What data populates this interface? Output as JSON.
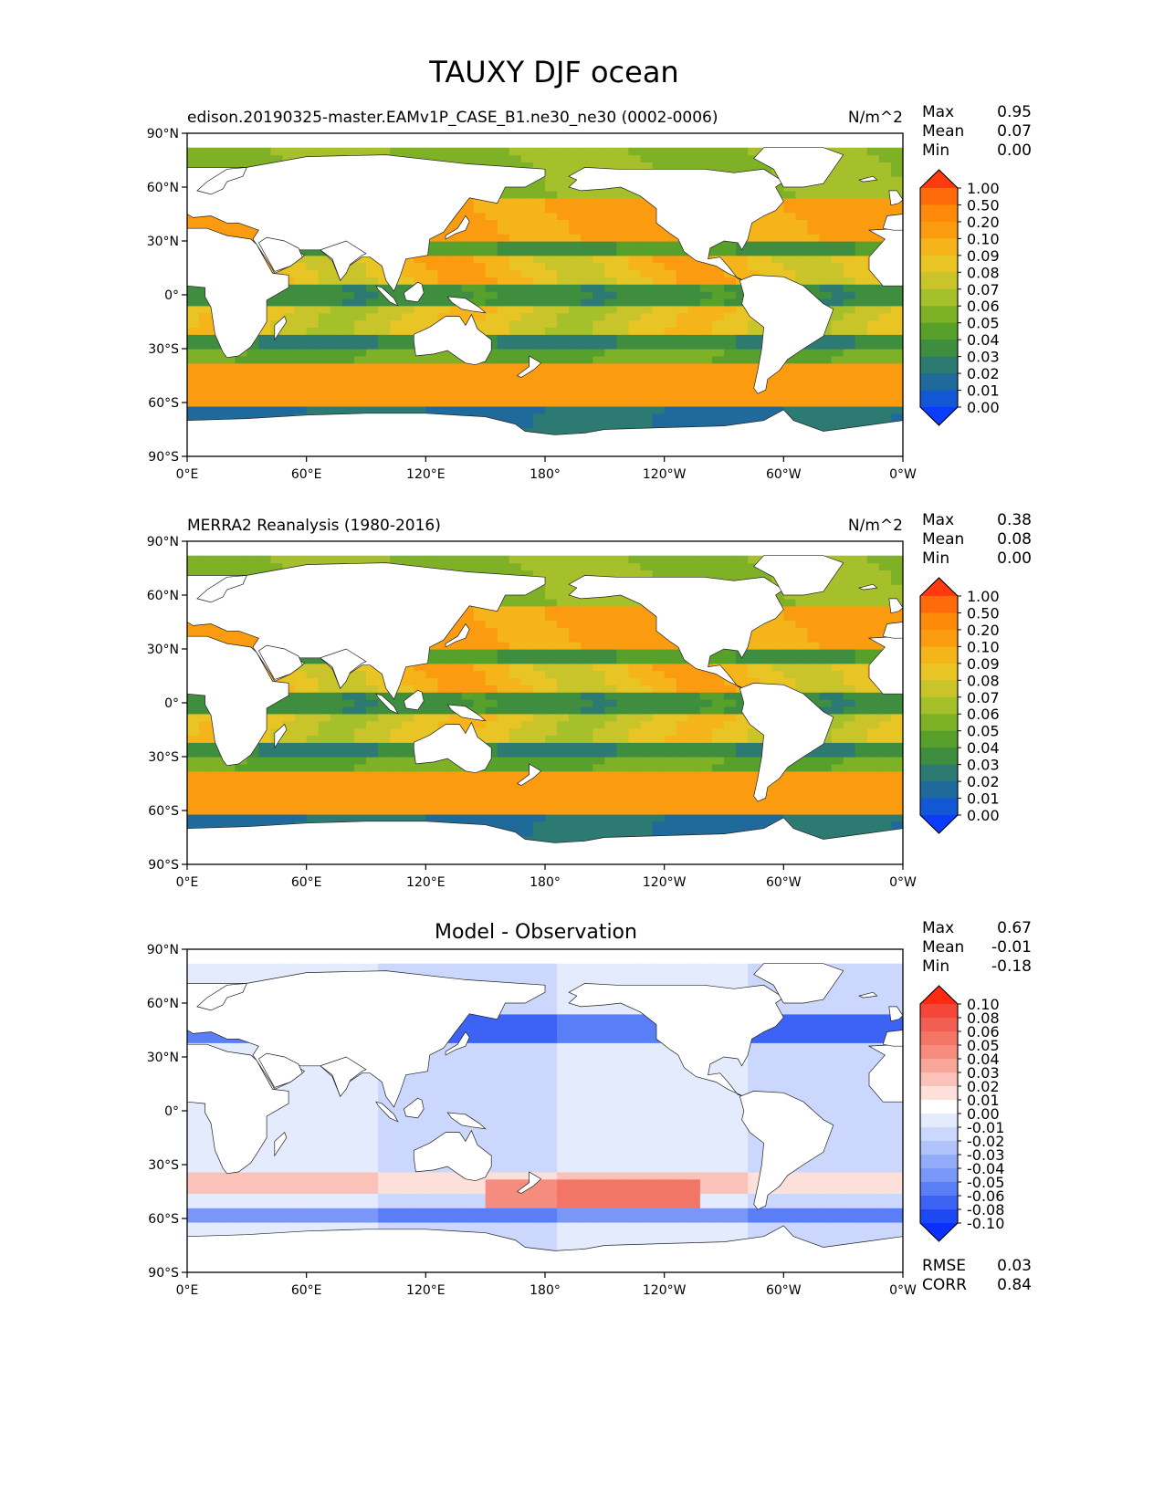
{
  "figure_title": "TAUXY DJF ocean",
  "chart_data": [
    {
      "type": "heatmap",
      "panel": "test",
      "title_left": "edison.20190325-master.EAMv1P_CASE_B1.ne30_ne30 (0002-0006)",
      "title_center": "",
      "units": "N/m^2",
      "xticks": [
        "0°E",
        "60°E",
        "120°E",
        "180°",
        "120°W",
        "60°W",
        "0°W"
      ],
      "yticks": [
        "90°N",
        "60°N",
        "30°N",
        "0°",
        "30°S",
        "60°S",
        "90°S"
      ],
      "xlim": [
        0,
        360
      ],
      "ylim": [
        -90,
        90
      ],
      "stats": [
        {
          "label": "Max",
          "value": "0.95"
        },
        {
          "label": "Mean",
          "value": "0.07"
        },
        {
          "label": "Min",
          "value": "0.00"
        }
      ],
      "colorbar": {
        "labels": [
          "1.00",
          "0.50",
          "0.20",
          "0.10",
          "0.09",
          "0.08",
          "0.07",
          "0.06",
          "0.05",
          "0.04",
          "0.03",
          "0.02",
          "0.01",
          "0.00"
        ],
        "colors": [
          "#ff3a0f",
          "#ff6a0a",
          "#ff8a0a",
          "#fb9c10",
          "#f4b41a",
          "#e8c424",
          "#c8c42a",
          "#a6c02c",
          "#7fb126",
          "#58a02c",
          "#3f8e3f",
          "#2c7a72",
          "#1f6a9a",
          "#1258d4",
          "#0c3cff"
        ]
      },
      "field": "abs"
    },
    {
      "type": "heatmap",
      "panel": "reference",
      "title_left": "MERRA2 Reanalysis (1980-2016)",
      "title_center": "",
      "units": "N/m^2",
      "xticks": [
        "0°E",
        "60°E",
        "120°E",
        "180°",
        "120°W",
        "60°W",
        "0°W"
      ],
      "yticks": [
        "90°N",
        "60°N",
        "30°N",
        "0°",
        "30°S",
        "60°S",
        "90°S"
      ],
      "xlim": [
        0,
        360
      ],
      "ylim": [
        -90,
        90
      ],
      "stats": [
        {
          "label": "Max",
          "value": "0.38"
        },
        {
          "label": "Mean",
          "value": "0.08"
        },
        {
          "label": "Min",
          "value": "0.00"
        }
      ],
      "colorbar": {
        "labels": [
          "1.00",
          "0.50",
          "0.20",
          "0.10",
          "0.09",
          "0.08",
          "0.07",
          "0.06",
          "0.05",
          "0.04",
          "0.03",
          "0.02",
          "0.01",
          "0.00"
        ],
        "colors": [
          "#ff3a0f",
          "#ff6a0a",
          "#ff8a0a",
          "#fb9c10",
          "#f4b41a",
          "#e8c424",
          "#c8c42a",
          "#a6c02c",
          "#7fb126",
          "#58a02c",
          "#3f8e3f",
          "#2c7a72",
          "#1f6a9a",
          "#1258d4",
          "#0c3cff"
        ]
      },
      "field": "abs"
    },
    {
      "type": "heatmap",
      "panel": "difference",
      "title_left": "",
      "title_center": "Model - Observation",
      "units": "",
      "xticks": [
        "0°E",
        "60°E",
        "120°E",
        "180°",
        "120°W",
        "60°W",
        "0°W"
      ],
      "yticks": [
        "90°N",
        "60°N",
        "30°N",
        "0°",
        "30°S",
        "60°S",
        "90°S"
      ],
      "xlim": [
        0,
        360
      ],
      "ylim": [
        -90,
        90
      ],
      "stats": [
        {
          "label": "Max",
          "value": "0.67"
        },
        {
          "label": "Mean",
          "value": "-0.01"
        },
        {
          "label": "Min",
          "value": "-0.18"
        }
      ],
      "extra_stats": [
        {
          "label": "RMSE",
          "value": "0.03"
        },
        {
          "label": "CORR",
          "value": "0.84"
        }
      ],
      "colorbar": {
        "labels": [
          "0.10",
          "0.08",
          "0.06",
          "0.05",
          "0.04",
          "0.03",
          "0.02",
          "0.01",
          "0.00",
          "-0.01",
          "-0.02",
          "-0.03",
          "-0.04",
          "-0.05",
          "-0.06",
          "-0.08",
          "-0.10"
        ],
        "colors": [
          "#ff2a10",
          "#f6463a",
          "#f25f52",
          "#f27566",
          "#f58c7e",
          "#f8a69a",
          "#fbc2b9",
          "#fde0da",
          "#ffffff",
          "#e4ebfd",
          "#cbd7fc",
          "#b0c3fb",
          "#93acf9",
          "#7897f7",
          "#5a7ef5",
          "#3c63f3",
          "#1e48f1",
          "#0a30ff"
        ]
      },
      "field": "diff"
    }
  ]
}
